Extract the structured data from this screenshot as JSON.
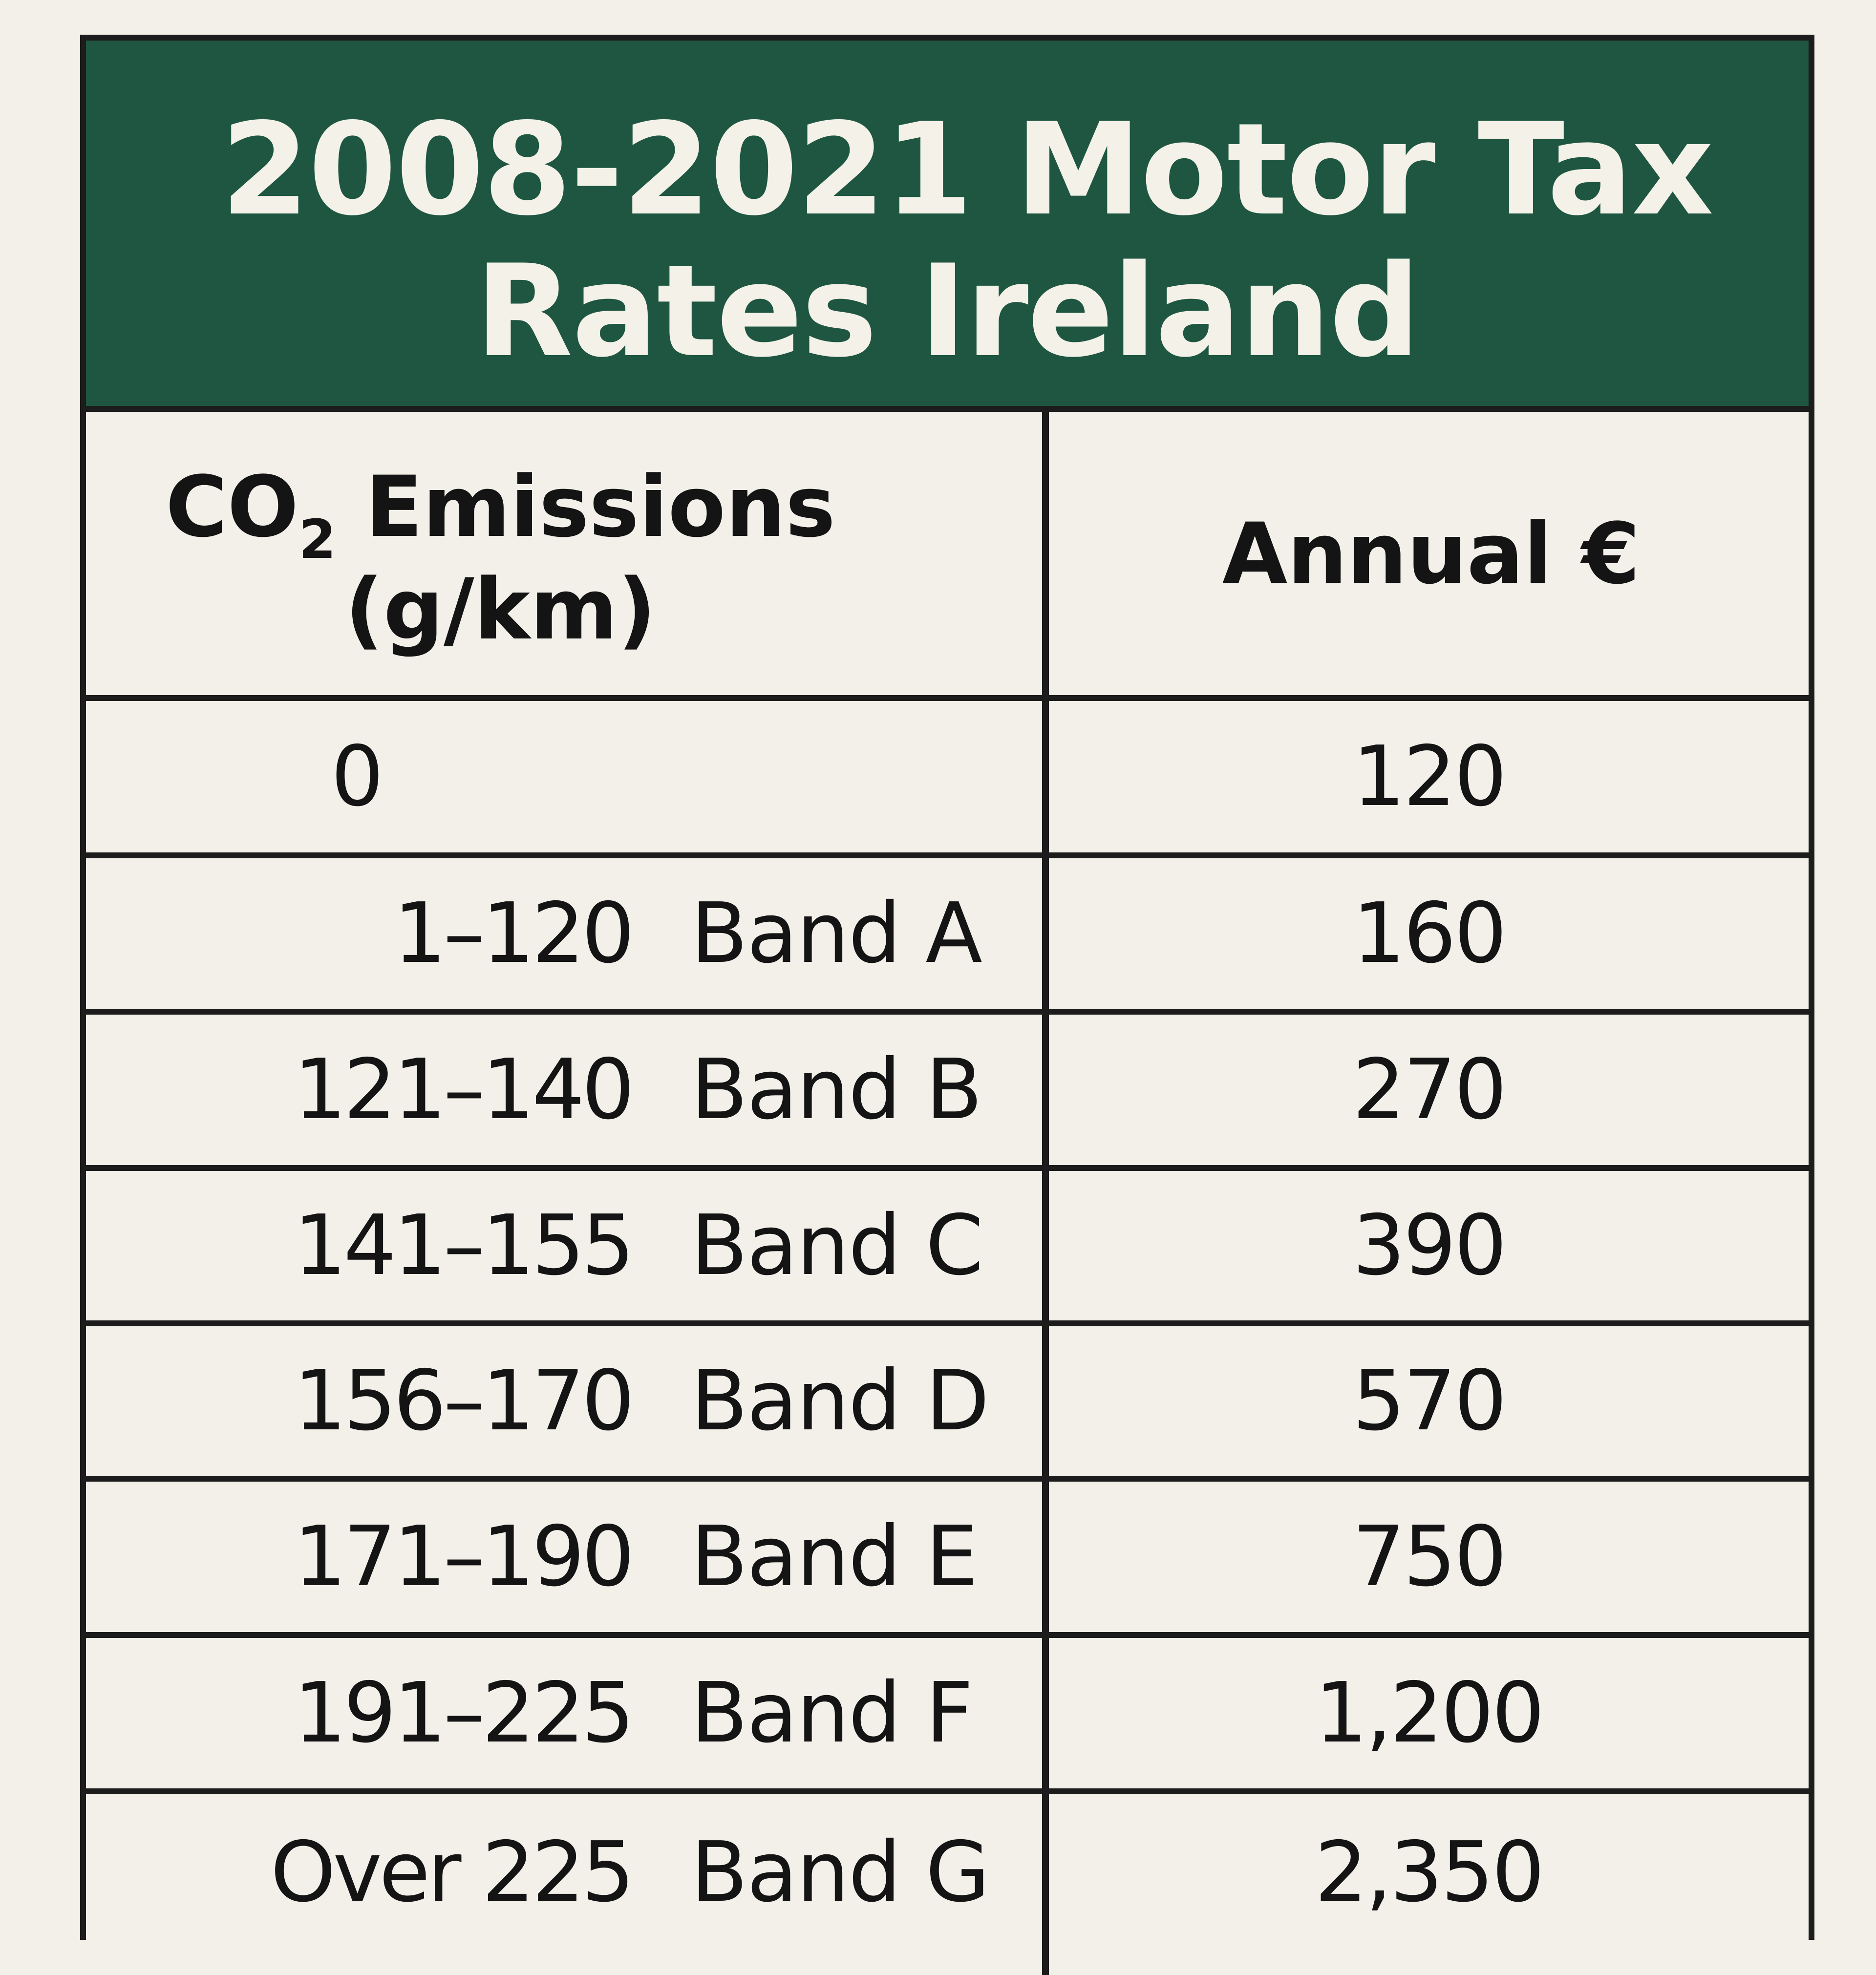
{
  "title": {
    "line1": "2008-2021 Motor Tax",
    "line2": "Rates Ireland"
  },
  "header": {
    "co2_prefix": "CO",
    "co2_sub": "2",
    "co2_suffix": " Emissions",
    "co2_units": "(g/km)",
    "annual": "Annual €"
  },
  "rows": [
    {
      "range": "0",
      "band": "",
      "annual": "120"
    },
    {
      "range": "1–120",
      "band": "Band A",
      "annual": "160"
    },
    {
      "range": "121–140",
      "band": "Band B",
      "annual": "270"
    },
    {
      "range": "141–155",
      "band": "Band C",
      "annual": "390"
    },
    {
      "range": "156–170",
      "band": "Band D",
      "annual": "570"
    },
    {
      "range": "171–190",
      "band": "Band E",
      "annual": "750"
    },
    {
      "range": "191–225",
      "band": "Band F",
      "annual": "1,200"
    },
    {
      "range": "Over 225",
      "band": "Band G",
      "annual": "2,350"
    }
  ],
  "colors": {
    "header_bg": "#1e5641",
    "header_text": "#f3f1e8",
    "page_bg": "#f2f0e9",
    "border": "#1c1c1c",
    "text": "#141414"
  }
}
